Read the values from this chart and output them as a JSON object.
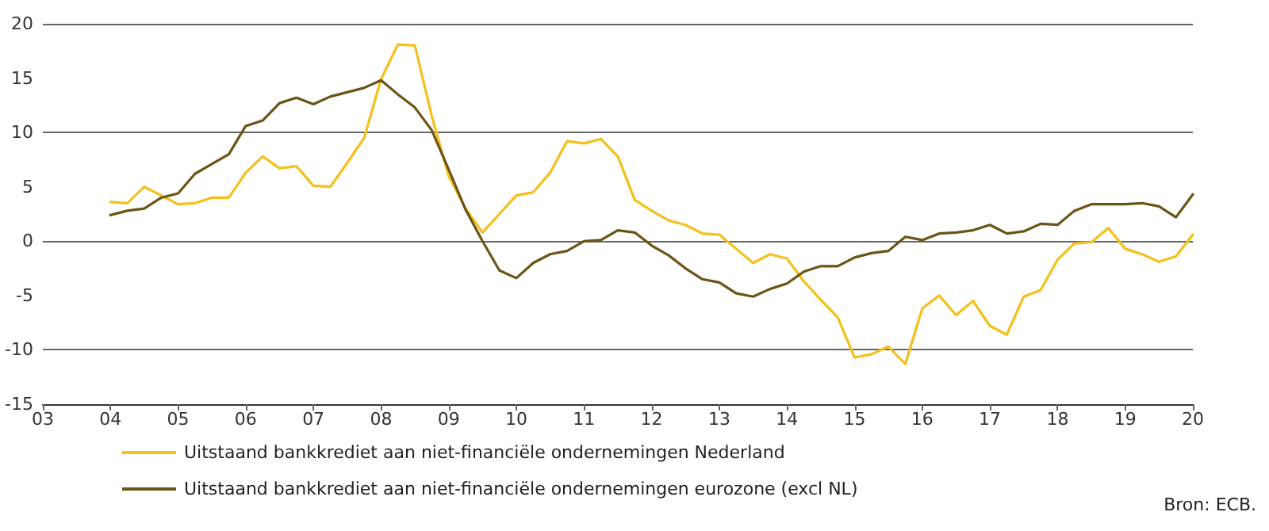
{
  "chart_data": {
    "type": "line",
    "x": [
      2004,
      2004.25,
      2004.5,
      2004.75,
      2005,
      2005.25,
      2005.5,
      2005.75,
      2006,
      2006.25,
      2006.5,
      2006.75,
      2007,
      2007.25,
      2007.5,
      2007.75,
      2008,
      2008.25,
      2008.5,
      2008.75,
      2009,
      2009.25,
      2009.5,
      2009.75,
      2010,
      2010.25,
      2010.5,
      2010.75,
      2011,
      2011.25,
      2011.5,
      2011.75,
      2012,
      2012.25,
      2012.5,
      2012.75,
      2013,
      2013.25,
      2013.5,
      2013.75,
      2014,
      2014.25,
      2014.5,
      2014.75,
      2015,
      2015.25,
      2015.5,
      2015.75,
      2016,
      2016.25,
      2016.5,
      2016.75,
      2017,
      2017.25,
      2017.5,
      2017.75,
      2018,
      2018.25,
      2018.5,
      2018.75,
      2019,
      2019.25,
      2019.5,
      2019.75,
      2020
    ],
    "series": [
      {
        "name": "Uitstaand bankkrediet aan niet-financiële ondernemingen Nederland",
        "color": "#f5c01a",
        "values": [
          3.6,
          3.5,
          5.0,
          4.2,
          3.4,
          3.5,
          4.0,
          4.0,
          6.3,
          7.8,
          6.7,
          6.9,
          5.1,
          5.0,
          7.2,
          9.5,
          14.9,
          18.1,
          18.0,
          11.5,
          6.0,
          3.0,
          0.8,
          2.5,
          4.2,
          4.5,
          6.3,
          9.2,
          9.0,
          9.4,
          7.8,
          3.8,
          2.8,
          1.9,
          1.5,
          0.7,
          0.6,
          -0.7,
          -2.0,
          -1.2,
          -1.6,
          -3.7,
          -5.4,
          -7.0,
          -10.7,
          -10.4,
          -9.7,
          -11.3,
          -6.2,
          -5.0,
          -6.8,
          -5.5,
          -7.8,
          -8.6,
          -5.1,
          -4.5,
          -1.7,
          -0.2,
          -0.1,
          1.2,
          -0.7,
          -1.2,
          -1.9,
          -1.4,
          0.6
        ]
      },
      {
        "name": "Uitstaand bankkrediet aan niet-financiële ondernemingen eurozone (excl NL)",
        "color": "#6b5416",
        "values": [
          2.4,
          2.8,
          3.0,
          4.0,
          4.4,
          6.2,
          7.1,
          8.0,
          10.6,
          11.1,
          12.7,
          13.2,
          12.6,
          13.3,
          13.7,
          14.1,
          14.8,
          13.5,
          12.3,
          10.2,
          6.6,
          2.9,
          0.0,
          -2.7,
          -3.4,
          -2.0,
          -1.2,
          -0.9,
          0.0,
          0.1,
          1.0,
          0.8,
          -0.4,
          -1.3,
          -2.5,
          -3.5,
          -3.8,
          -4.8,
          -5.1,
          -4.4,
          -3.9,
          -2.8,
          -2.3,
          -2.3,
          -1.5,
          -1.1,
          -0.9,
          0.4,
          0.1,
          0.7,
          0.8,
          1.0,
          1.5,
          0.7,
          0.9,
          1.6,
          1.5,
          2.8,
          3.4,
          3.4,
          3.4,
          3.5,
          3.2,
          2.2,
          4.3
        ]
      }
    ],
    "xlim": [
      2003,
      2020
    ],
    "xticks": [
      {
        "value": 2003,
        "label": "03"
      },
      {
        "value": 2004,
        "label": "04"
      },
      {
        "value": 2005,
        "label": "05"
      },
      {
        "value": 2006,
        "label": "06"
      },
      {
        "value": 2007,
        "label": "07"
      },
      {
        "value": 2008,
        "label": "08"
      },
      {
        "value": 2009,
        "label": "09"
      },
      {
        "value": 2010,
        "label": "10"
      },
      {
        "value": 2011,
        "label": "11"
      },
      {
        "value": 2012,
        "label": "12"
      },
      {
        "value": 2013,
        "label": "13"
      },
      {
        "value": 2014,
        "label": "14"
      },
      {
        "value": 2015,
        "label": "15"
      },
      {
        "value": 2016,
        "label": "16"
      },
      {
        "value": 2017,
        "label": "17"
      },
      {
        "value": 2018,
        "label": "18"
      },
      {
        "value": 2019,
        "label": "19"
      },
      {
        "value": 2020,
        "label": "20"
      }
    ],
    "ylim": [
      -15,
      20
    ],
    "yticks": [
      -15,
      -10,
      -5,
      0,
      5,
      10,
      15,
      20
    ],
    "grid": "y",
    "legend": "bottom left",
    "marker": "none",
    "line_style": "solid",
    "annotations": [
      "Bron: ECB."
    ]
  }
}
